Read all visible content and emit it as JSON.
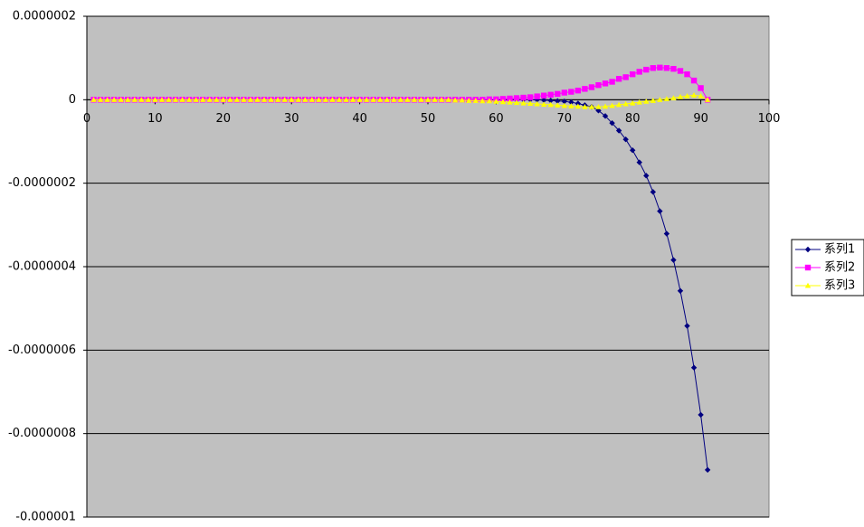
{
  "chart_data": {
    "type": "scatter",
    "x": [
      1,
      2,
      3,
      4,
      5,
      6,
      7,
      8,
      9,
      10,
      11,
      12,
      13,
      14,
      15,
      16,
      17,
      18,
      19,
      20,
      21,
      22,
      23,
      24,
      25,
      26,
      27,
      28,
      29,
      30,
      31,
      32,
      33,
      34,
      35,
      36,
      37,
      38,
      39,
      40,
      41,
      42,
      43,
      44,
      45,
      46,
      47,
      48,
      49,
      50,
      51,
      52,
      53,
      54,
      55,
      56,
      57,
      58,
      59,
      60,
      61,
      62,
      63,
      64,
      65,
      66,
      67,
      68,
      69,
      70,
      71,
      72,
      73,
      74,
      75,
      76,
      77,
      78,
      79,
      80,
      81,
      82,
      83,
      84,
      85,
      86,
      87,
      88,
      89,
      90,
      91
    ],
    "series": [
      {
        "name": "系列1",
        "color": "#000080",
        "marker": "diamond",
        "values": [
          0,
          0,
          0,
          0,
          0,
          0,
          0,
          0,
          0,
          0,
          0,
          0,
          0,
          0,
          0,
          0,
          0,
          0,
          0,
          0,
          0,
          0,
          0,
          0,
          0,
          0,
          0,
          0,
          0,
          0,
          0,
          0,
          0,
          0,
          0,
          0,
          0,
          0,
          0,
          0,
          0,
          0,
          0,
          0,
          0,
          0,
          0,
          0,
          0,
          0,
          0,
          0,
          0,
          0,
          0,
          0,
          0,
          0,
          0,
          0,
          0,
          0,
          0,
          0,
          0,
          0,
          -1e-09,
          -2e-09,
          -3e-09,
          -4e-09,
          -6e-09,
          -9e-09,
          -1.3e-08,
          -1.7e-08,
          -2.6e-08,
          -3.9e-08,
          -5.6e-08,
          -7.4e-08,
          -9.5e-08,
          -1.21e-07,
          -1.5e-07,
          -1.82e-07,
          -2.21e-07,
          -2.67e-07,
          -3.21e-07,
          -3.84e-07,
          -4.58e-07,
          -5.42e-07,
          -6.42e-07,
          -7.55e-07,
          -8.87e-07
        ]
      },
      {
        "name": "系列2",
        "color": "#ff00ff",
        "marker": "square",
        "values": [
          0,
          0,
          0,
          0,
          0,
          0,
          0,
          0,
          0,
          0,
          0,
          0,
          0,
          0,
          0,
          0,
          0,
          0,
          0,
          0,
          0,
          0,
          0,
          0,
          0,
          0,
          0,
          0,
          0,
          0,
          0,
          0,
          0,
          0,
          0,
          0,
          0,
          0,
          0,
          0,
          0,
          0,
          0,
          0,
          0,
          0,
          0,
          0,
          0,
          0,
          0,
          0,
          0,
          0,
          0,
          0,
          0,
          0,
          1e-09,
          1e-09,
          2e-09,
          3e-09,
          4e-09,
          5e-09,
          6e-09,
          8e-09,
          1e-08,
          1.2e-08,
          1.4e-08,
          1.7e-08,
          1.9e-08,
          2.2e-08,
          2.6e-08,
          3e-08,
          3.5e-08,
          3.9e-08,
          4.3e-08,
          5e-08,
          5.4e-08,
          6.1e-08,
          6.7e-08,
          7.2e-08,
          7.6e-08,
          7.7e-08,
          7.6e-08,
          7.4e-08,
          6.9e-08,
          6.1e-08,
          4.6e-08,
          2.8e-08,
          0
        ]
      },
      {
        "name": "系列3",
        "color": "#ffff00",
        "marker": "triangle",
        "values": [
          0,
          0,
          0,
          0,
          0,
          0,
          0,
          0,
          0,
          0,
          0,
          0,
          0,
          0,
          0,
          0,
          0,
          0,
          0,
          0,
          0,
          0,
          0,
          0,
          0,
          0,
          0,
          0,
          0,
          0,
          0,
          0,
          0,
          0,
          0,
          0,
          0,
          0,
          0,
          0,
          0,
          0,
          0,
          0,
          0,
          0,
          0,
          0,
          0,
          0,
          0,
          0,
          0,
          -1e-09,
          -1e-09,
          -2e-09,
          -2e-09,
          -3e-09,
          -3e-09,
          -4e-09,
          -5e-09,
          -6e-09,
          -7e-09,
          -8e-09,
          -9e-09,
          -1e-08,
          -1.1e-08,
          -1.2e-08,
          -1.3e-08,
          -1.4e-08,
          -1.5e-08,
          -1.6e-08,
          -1.7e-08,
          -1.7e-08,
          -1.7e-08,
          -1.6e-08,
          -1.4e-08,
          -1.2e-08,
          -1e-08,
          -8e-09,
          -6e-09,
          -4e-09,
          -2e-09,
          0,
          2e-09,
          4e-09,
          7e-09,
          9e-09,
          1.1e-08,
          9e-09,
          0
        ]
      }
    ],
    "xlim": [
      0,
      100
    ],
    "xticks": [
      0,
      10,
      20,
      30,
      40,
      50,
      60,
      70,
      80,
      90,
      100
    ],
    "ylim": [
      -1e-06,
      2e-07
    ],
    "yticks": [
      {
        "value": 2e-07,
        "label": "0.0000002"
      },
      0,
      {
        "value": -2e-07,
        "label": "-0.0000002"
      },
      {
        "value": -4e-07,
        "label": "-0.0000004"
      },
      {
        "value": -6e-07,
        "label": "-0.0000006"
      },
      {
        "value": -8e-07,
        "label": "-0.0000008"
      },
      -1e-06
    ],
    "grid": true,
    "legend": "right",
    "background": "#c0c0c0"
  }
}
